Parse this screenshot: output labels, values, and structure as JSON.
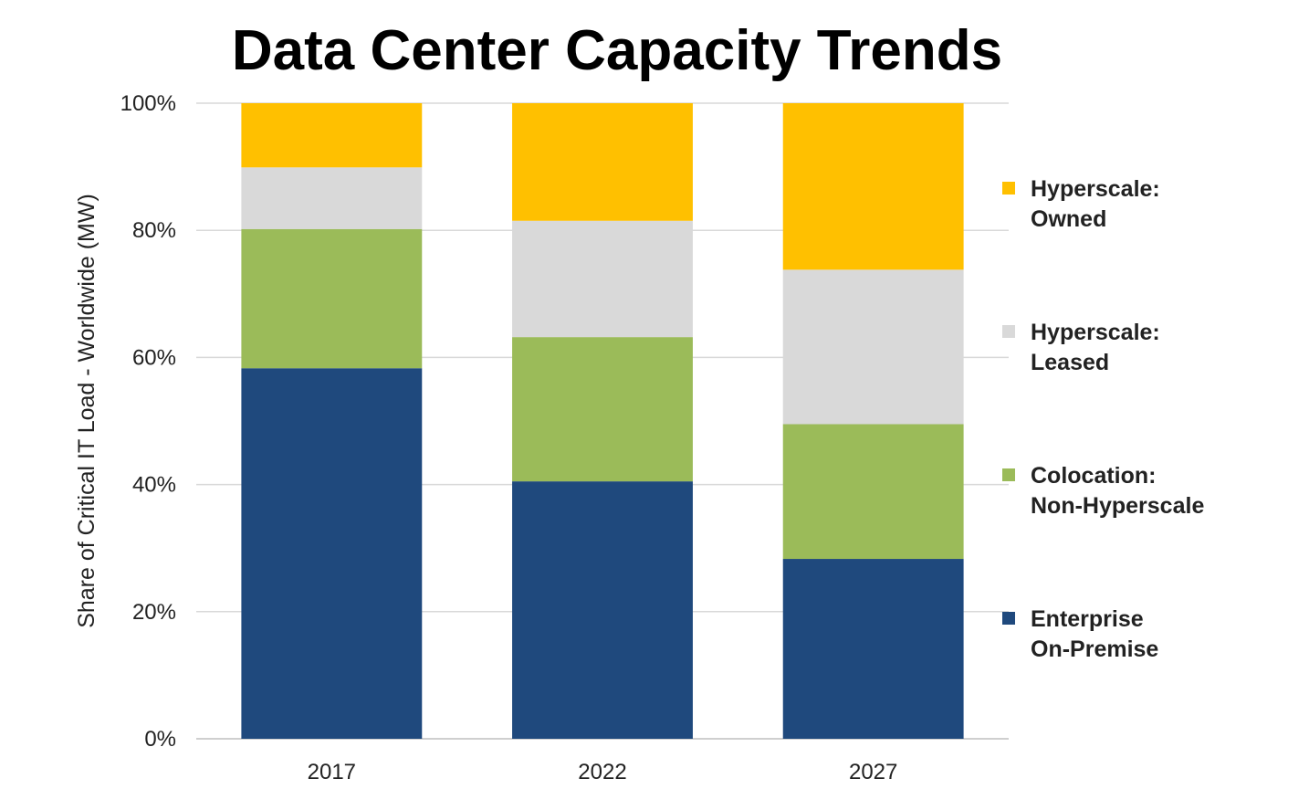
{
  "chart_data": {
    "type": "bar",
    "stacked": true,
    "title": "Data Center Capacity Trends",
    "xlabel": "",
    "ylabel": "Share of Critical IT Load - Worldwide (MW)",
    "ylim": [
      0,
      100
    ],
    "yticks": [
      "0%",
      "20%",
      "40%",
      "60%",
      "80%",
      "100%"
    ],
    "categories": [
      "2017",
      "2022",
      "2027"
    ],
    "grid": true,
    "legend_position": "right",
    "series": [
      {
        "name": "Enterprise On-Premise",
        "legend_lines": [
          "Enterprise",
          "On-Premise"
        ],
        "color": "#1f497d",
        "values": [
          58.3,
          40.5,
          28.3
        ]
      },
      {
        "name": "Colocation: Non-Hyperscale",
        "legend_lines": [
          "Colocation:",
          "Non-Hyperscale"
        ],
        "color": "#9bbb59",
        "values": [
          21.9,
          22.7,
          21.2
        ]
      },
      {
        "name": "Hyperscale: Leased",
        "legend_lines": [
          "Hyperscale:",
          "Leased"
        ],
        "color": "#d9d9d9",
        "values": [
          9.7,
          18.3,
          24.3
        ]
      },
      {
        "name": "Hyperscale: Owned",
        "legend_lines": [
          "Hyperscale:",
          "Owned"
        ],
        "color": "#ffc000",
        "values": [
          10.1,
          18.5,
          26.2
        ]
      }
    ]
  }
}
